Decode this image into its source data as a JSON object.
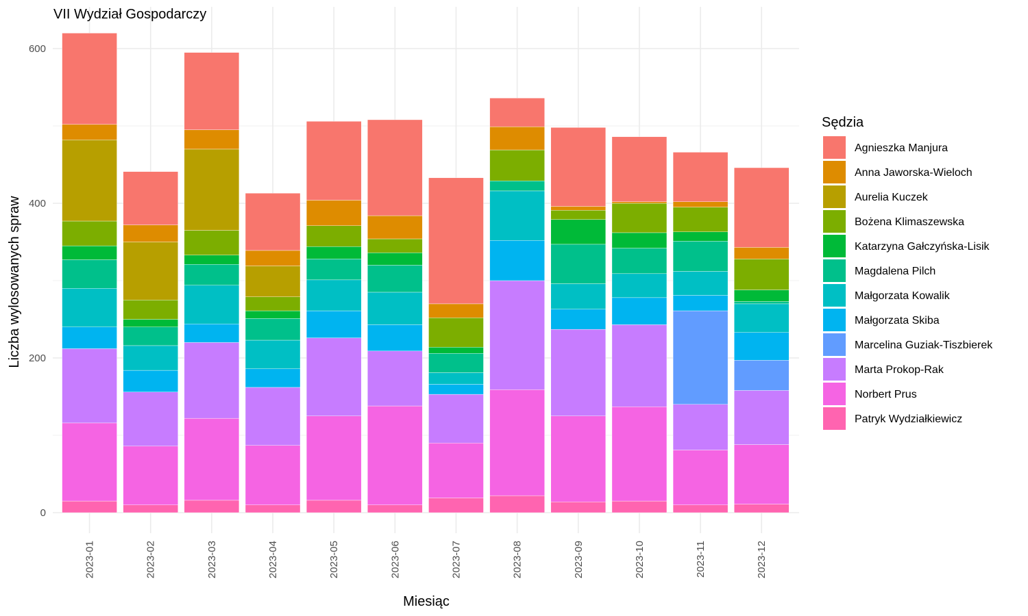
{
  "chart_data": {
    "type": "bar",
    "stacked": true,
    "title": "VII Wydział Gospodarczy",
    "xlabel": "Miesiąc",
    "ylabel": "Liczba wylosowanych spraw",
    "ylim": [
      0,
      640
    ],
    "y_ticks": [
      0,
      200,
      400,
      600
    ],
    "grid": true,
    "legend_title": "Sędzia",
    "legend_position": "right",
    "categories": [
      "2023-01",
      "2023-02",
      "2023-03",
      "2023-04",
      "2023-05",
      "2023-06",
      "2023-07",
      "2023-08",
      "2023-09",
      "2023-10",
      "2023-11",
      "2023-12"
    ],
    "series": [
      {
        "name": "Agnieszka Manjura",
        "color": "#F8766D",
        "values": [
          118,
          69,
          100,
          74,
          102,
          124,
          163,
          37,
          102,
          84,
          64,
          103
        ]
      },
      {
        "name": "Anna Jaworska-Wieloch",
        "color": "#DE8C00",
        "values": [
          20,
          22,
          25,
          20,
          33,
          30,
          18,
          30,
          5,
          2,
          7,
          15
        ]
      },
      {
        "name": "Aurelia Kuczek",
        "color": "#B79F00",
        "values": [
          105,
          75,
          105,
          40,
          0,
          0,
          0,
          0,
          0,
          0,
          0,
          0
        ]
      },
      {
        "name": "Bożena Klimaszewska",
        "color": "#7CAE00",
        "values": [
          32,
          25,
          32,
          18,
          27,
          18,
          38,
          40,
          12,
          38,
          32,
          40
        ]
      },
      {
        "name": "Katarzyna Gałczyńska-Lisik",
        "color": "#00BA38",
        "values": [
          18,
          10,
          12,
          10,
          16,
          16,
          8,
          0,
          32,
          20,
          12,
          15
        ]
      },
      {
        "name": "Magdalena Pilch",
        "color": "#00C08B",
        "values": [
          37,
          24,
          27,
          28,
          27,
          35,
          25,
          13,
          51,
          33,
          39,
          3
        ]
      },
      {
        "name": "Małgorzata Kowalik",
        "color": "#00BFC4",
        "values": [
          50,
          32,
          50,
          37,
          40,
          42,
          15,
          64,
          33,
          31,
          31,
          37
        ]
      },
      {
        "name": "Małgorzata Skiba",
        "color": "#00B4F0",
        "values": [
          28,
          28,
          24,
          24,
          35,
          34,
          13,
          52,
          26,
          35,
          20,
          36
        ]
      },
      {
        "name": "Marcelina Guziak-Tiszbierek",
        "color": "#619CFF",
        "values": [
          0,
          0,
          0,
          0,
          0,
          0,
          0,
          0,
          0,
          0,
          121,
          39
        ]
      },
      {
        "name": "Marta Prokop-Rak",
        "color": "#C77CFF",
        "values": [
          96,
          70,
          98,
          75,
          101,
          71,
          63,
          141,
          112,
          106,
          59,
          70
        ]
      },
      {
        "name": "Norbert Prus",
        "color": "#F564E3",
        "values": [
          101,
          76,
          106,
          77,
          109,
          128,
          71,
          137,
          111,
          122,
          71,
          77
        ]
      },
      {
        "name": "Patryk Wydziałkiewicz",
        "color": "#FF64B0",
        "values": [
          15,
          10,
          16,
          10,
          16,
          10,
          19,
          22,
          14,
          15,
          10,
          11
        ]
      }
    ]
  }
}
